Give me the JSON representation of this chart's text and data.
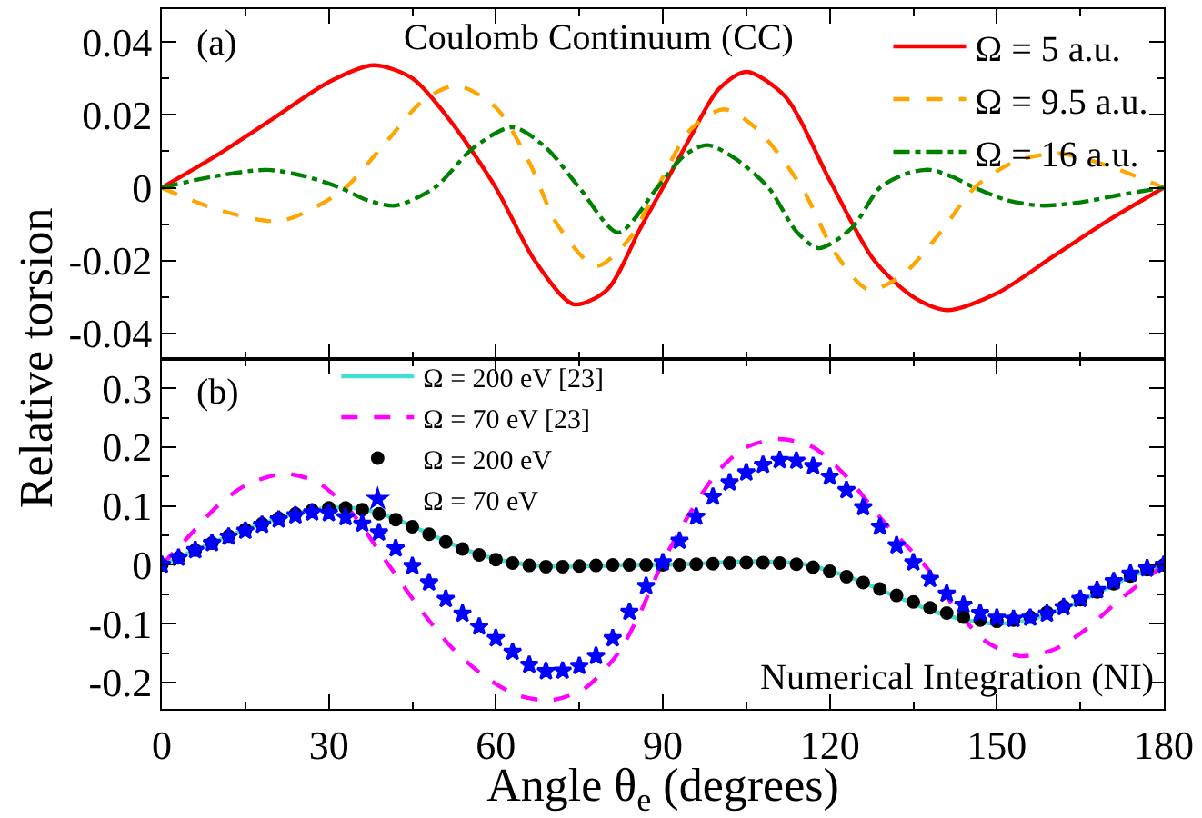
{
  "chart_data": [
    {
      "type": "line",
      "ylabel": "Relative torsion",
      "xlim": [
        0,
        180
      ],
      "xticks": [
        0,
        30,
        60,
        90,
        120,
        150,
        180
      ],
      "ylim": [
        -0.047,
        0.049
      ],
      "yticks": [
        {
          "value": -0.04,
          "label": "-0.04"
        },
        {
          "value": -0.02,
          "label": "-0.02"
        },
        0,
        {
          "value": 0.02,
          "label": "0.02"
        },
        {
          "value": 0.04,
          "label": "0.04"
        }
      ],
      "tick_labels": "y",
      "legend": "top right",
      "annotations": [
        "(a)",
        "Coulomb Continuum (CC)"
      ],
      "series": [
        {
          "name": "Ω = 5 a.u.",
          "color": "#ff0000",
          "line_style": "solid",
          "x": [
            0,
            10,
            20,
            30,
            38,
            45,
            52,
            60,
            67,
            74,
            80,
            86,
            90,
            95,
            100,
            105,
            112,
            120,
            128,
            135,
            141,
            150,
            160,
            170,
            180
          ],
          "values": [
            0,
            0.009,
            0.019,
            0.029,
            0.0336,
            0.03,
            0.018,
            0.0,
            -0.02,
            -0.032,
            -0.028,
            -0.011,
            0.0,
            0.014,
            0.027,
            0.0318,
            0.025,
            0.002,
            -0.02,
            -0.03,
            -0.0336,
            -0.029,
            -0.019,
            -0.009,
            0
          ]
        },
        {
          "name": "Ω = 9.5 a.u.",
          "color": "#ffa500",
          "line_style": "dashed",
          "x": [
            0,
            10,
            21,
            28,
            33,
            40,
            47,
            53,
            60,
            66,
            71,
            78,
            84,
            89,
            95,
            101,
            107,
            115,
            121,
            127,
            133,
            140,
            146,
            153,
            161,
            170,
            180
          ],
          "values": [
            0,
            -0.006,
            -0.0092,
            -0.005,
            0,
            0.012,
            0.024,
            0.028,
            0.022,
            0.007,
            -0.01,
            -0.0215,
            -0.014,
            0,
            0.016,
            0.0215,
            0.016,
            0,
            -0.018,
            -0.028,
            -0.024,
            -0.012,
            0,
            0.007,
            0.0094,
            0.006,
            0
          ]
        },
        {
          "name": "Ω = 16 a.u.",
          "color": "#008000",
          "line_style": "dashdot",
          "x": [
            0,
            9,
            19,
            26,
            32,
            37,
            42,
            49,
            56,
            63,
            69,
            75,
            82,
            89,
            94,
            98,
            103,
            109,
            114,
            118,
            124,
            129,
            134,
            138,
            142,
            146,
            152,
            158,
            165,
            172,
            180
          ],
          "values": [
            0,
            0.003,
            0.0049,
            0.003,
            0,
            -0.0035,
            -0.0049,
            0,
            0.011,
            0.0166,
            0.011,
            0,
            -0.0123,
            0,
            0.009,
            0.0117,
            0.008,
            0,
            -0.012,
            -0.0166,
            -0.011,
            0,
            0.004,
            0.0049,
            0.003,
            0,
            -0.0035,
            -0.0049,
            -0.004,
            -0.002,
            0
          ]
        }
      ]
    },
    {
      "type": "line",
      "xlabel": "Angle θ$_{e}$ (degrees)",
      "xlim": [
        0,
        180
      ],
      "xticks": [
        0,
        30,
        60,
        90,
        120,
        150,
        180
      ],
      "ylim": [
        -0.245,
        0.35
      ],
      "yticks": [
        {
          "value": -0.2,
          "label": "-0.2"
        },
        {
          "value": -0.1,
          "label": "-0.1"
        },
        0,
        0.1,
        0.2,
        0.3
      ],
      "legend": "top left",
      "annotations": [
        "(b)",
        "Numerical Integration (NI)"
      ],
      "series": [
        {
          "name": "Ω = 200 eV [23]",
          "color": "#40e0d0",
          "line_style": "solid",
          "x": [
            0,
            6,
            12,
            18,
            24,
            30,
            36,
            42,
            48,
            54,
            60,
            66,
            72,
            78,
            84,
            90,
            96,
            102,
            108,
            114,
            120,
            126,
            132,
            138,
            144,
            150,
            156,
            162,
            168,
            174,
            180
          ],
          "values": [
            0,
            0.025,
            0.049,
            0.07,
            0.087,
            0.097,
            0.095,
            0.078,
            0.053,
            0.028,
            0.01,
            0.0,
            -0.003,
            -0.002,
            0,
            0,
            0.002,
            0.005,
            0.006,
            0.003,
            -0.01,
            -0.03,
            -0.054,
            -0.077,
            -0.093,
            -0.1,
            -0.093,
            -0.074,
            -0.048,
            -0.02,
            0
          ]
        },
        {
          "name": "Ω = 70 eV [23]",
          "color": "#ff00ff",
          "line_style": "dashed",
          "x": [
            0,
            5,
            10,
            15,
            22,
            28,
            34,
            40,
            46,
            52,
            58,
            64,
            70,
            76,
            82,
            86,
            90,
            95,
            100,
            105,
            111,
            117,
            123,
            130,
            137,
            143,
            148,
            154,
            160,
            166,
            172,
            180
          ],
          "values": [
            0,
            0.05,
            0.1,
            0.135,
            0.155,
            0.14,
            0.09,
            0.01,
            -0.07,
            -0.14,
            -0.19,
            -0.222,
            -0.23,
            -0.21,
            -0.15,
            -0.08,
            0.005,
            0.09,
            0.16,
            0.2,
            0.214,
            0.2,
            0.15,
            0.07,
            0.0,
            -0.08,
            -0.13,
            -0.155,
            -0.145,
            -0.11,
            -0.06,
            0
          ]
        },
        {
          "name": "Ω = 200 eV",
          "type": "scatter",
          "marker": "circle",
          "color": "#000000",
          "x": [
            0,
            3,
            6,
            9,
            12,
            15,
            18,
            21,
            24,
            27,
            30,
            33,
            36,
            39,
            42,
            45,
            48,
            51,
            54,
            57,
            60,
            63,
            66,
            69,
            72,
            75,
            78,
            81,
            84,
            87,
            90,
            93,
            96,
            99,
            102,
            105,
            108,
            111,
            114,
            117,
            120,
            123,
            126,
            129,
            132,
            135,
            138,
            141,
            144,
            147,
            150,
            153,
            156,
            159,
            162,
            165,
            168,
            171,
            174,
            177,
            180
          ],
          "values": [
            0,
            0.012,
            0.025,
            0.037,
            0.049,
            0.06,
            0.07,
            0.079,
            0.087,
            0.093,
            0.097,
            0.097,
            0.094,
            0.087,
            0.077,
            0.065,
            0.052,
            0.039,
            0.027,
            0.017,
            0.009,
            0.003,
            -0.001,
            -0.003,
            -0.003,
            -0.002,
            -0.001,
            0,
            0,
            0,
            0,
            0,
            0.001,
            0.002,
            0.003,
            0.004,
            0.004,
            0.003,
            0.001,
            -0.004,
            -0.011,
            -0.02,
            -0.03,
            -0.041,
            -0.052,
            -0.063,
            -0.073,
            -0.082,
            -0.089,
            -0.094,
            -0.096,
            -0.094,
            -0.089,
            -0.081,
            -0.071,
            -0.059,
            -0.046,
            -0.032,
            -0.019,
            -0.008,
            0
          ]
        },
        {
          "name": "Ω = 70 eV",
          "type": "scatter",
          "marker": "star",
          "color": "#0000ff",
          "x": [
            0,
            3,
            6,
            9,
            12,
            15,
            18,
            21,
            24,
            27,
            30,
            33,
            36,
            39,
            42,
            45,
            48,
            51,
            54,
            57,
            60,
            63,
            66,
            69,
            72,
            75,
            78,
            81,
            84,
            87,
            90,
            93,
            96,
            99,
            102,
            105,
            108,
            111,
            114,
            117,
            120,
            123,
            126,
            129,
            132,
            135,
            138,
            141,
            144,
            147,
            150,
            153,
            156,
            159,
            162,
            165,
            168,
            171,
            174,
            177,
            180
          ],
          "values": [
            0,
            0.012,
            0.025,
            0.037,
            0.048,
            0.058,
            0.068,
            0.077,
            0.084,
            0.089,
            0.088,
            0.081,
            0.07,
            0.055,
            0.028,
            -0.002,
            -0.03,
            -0.058,
            -0.083,
            -0.105,
            -0.125,
            -0.148,
            -0.17,
            -0.181,
            -0.18,
            -0.172,
            -0.155,
            -0.125,
            -0.08,
            -0.036,
            0.004,
            0.041,
            0.082,
            0.116,
            0.14,
            0.157,
            0.17,
            0.178,
            0.177,
            0.168,
            0.15,
            0.127,
            0.098,
            0.065,
            0.033,
            0.004,
            -0.024,
            -0.049,
            -0.068,
            -0.082,
            -0.09,
            -0.092,
            -0.09,
            -0.083,
            -0.072,
            -0.058,
            -0.043,
            -0.028,
            -0.015,
            -0.006,
            0
          ]
        }
      ]
    }
  ]
}
